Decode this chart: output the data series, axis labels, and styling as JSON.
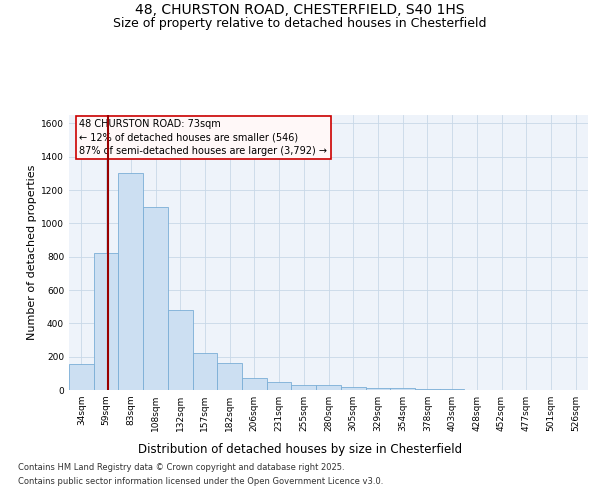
{
  "title_line1": "48, CHURSTON ROAD, CHESTERFIELD, S40 1HS",
  "title_line2": "Size of property relative to detached houses in Chesterfield",
  "xlabel": "Distribution of detached houses by size in Chesterfield",
  "ylabel": "Number of detached properties",
  "bar_color": "#ccdff2",
  "bar_edge_color": "#7aaed6",
  "categories": [
    "34sqm",
    "59sqm",
    "83sqm",
    "108sqm",
    "132sqm",
    "157sqm",
    "182sqm",
    "206sqm",
    "231sqm",
    "255sqm",
    "280sqm",
    "305sqm",
    "329sqm",
    "354sqm",
    "378sqm",
    "403sqm",
    "428sqm",
    "452sqm",
    "477sqm",
    "501sqm",
    "526sqm"
  ],
  "values": [
    155,
    820,
    1300,
    1100,
    480,
    225,
    160,
    75,
    50,
    30,
    30,
    20,
    15,
    10,
    8,
    5,
    3,
    2,
    2,
    2,
    2
  ],
  "property_label": "48 CHURSTON ROAD: 73sqm",
  "annotation_line2": "← 12% of detached houses are smaller (546)",
  "annotation_line3": "87% of semi-detached houses are larger (3,792) →",
  "vline_color": "#990000",
  "annotation_box_facecolor": "#fff8f8",
  "annotation_box_edge": "#cc0000",
  "ylim": [
    0,
    1650
  ],
  "yticks": [
    0,
    200,
    400,
    600,
    800,
    1000,
    1200,
    1400,
    1600
  ],
  "grid_color": "#c8d8e8",
  "plot_bg_color": "#eef3fa",
  "footer_line1": "Contains HM Land Registry data © Crown copyright and database right 2025.",
  "footer_line2": "Contains public sector information licensed under the Open Government Licence v3.0.",
  "title_fontsize": 10,
  "subtitle_fontsize": 9,
  "tick_fontsize": 6.5,
  "xlabel_fontsize": 8.5,
  "ylabel_fontsize": 8,
  "footer_fontsize": 6,
  "annotation_fontsize": 7
}
